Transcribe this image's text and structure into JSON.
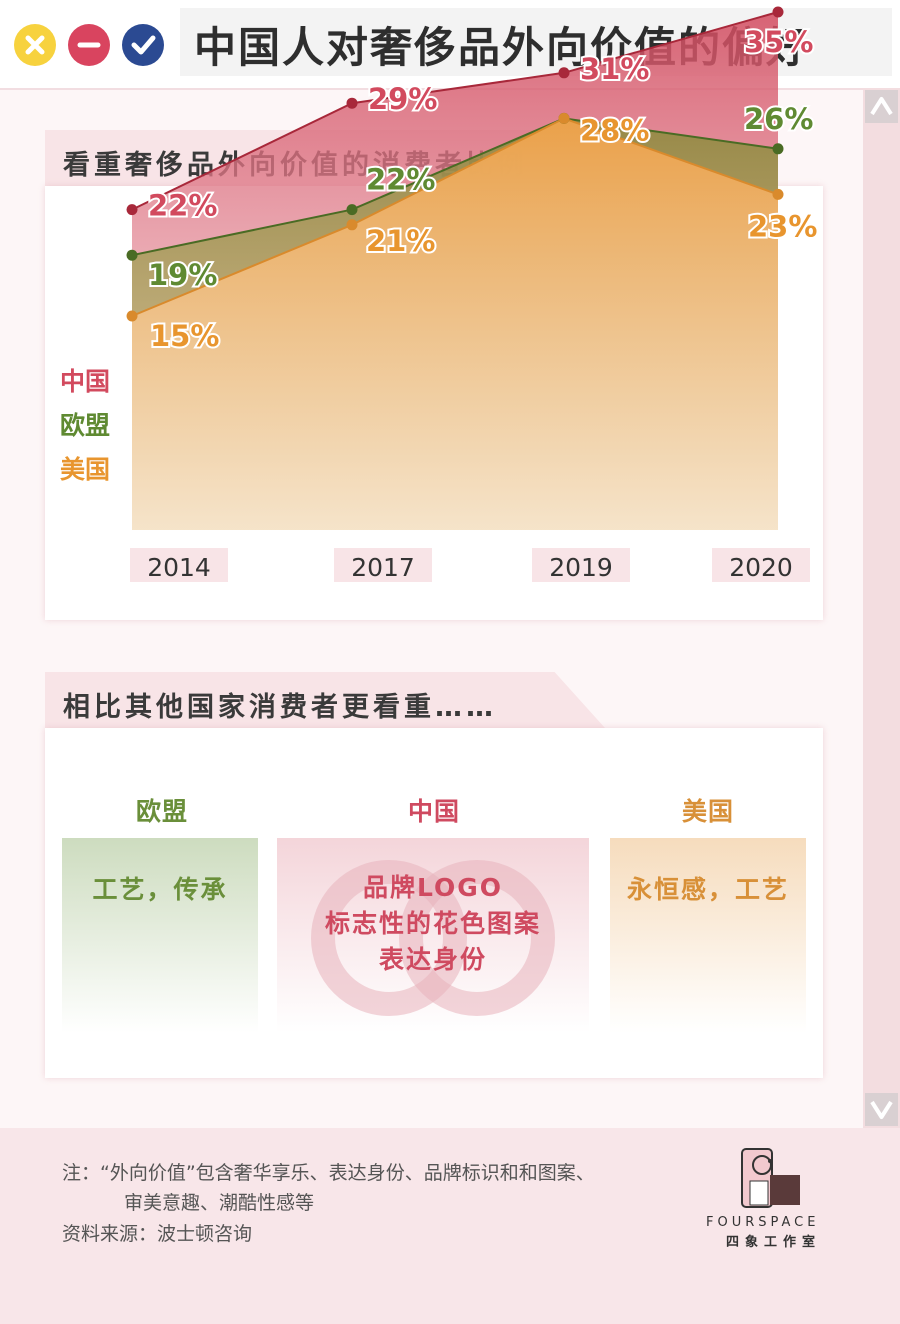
{
  "window": {
    "title": "中国人对奢侈品外向价值的偏好",
    "buttons": [
      {
        "name": "close",
        "color": "#f7d23e"
      },
      {
        "name": "minimize",
        "color": "#d9445f"
      },
      {
        "name": "maximize",
        "color": "#2b4a92"
      }
    ]
  },
  "section1": {
    "title": "看重奢侈品外向价值的消费者比例"
  },
  "chart_data": {
    "type": "area",
    "title": "看重奢侈品外向价值的消费者比例",
    "categories": [
      "2014",
      "2017",
      "2019",
      "2020"
    ],
    "ylim": [
      0,
      40
    ],
    "grid": false,
    "unit": "%",
    "series": [
      {
        "name": "中国",
        "values": [
          22,
          29,
          31,
          35
        ],
        "labels": [
          "22%",
          "29%",
          "31%",
          "35%"
        ],
        "color": "#d24a5e",
        "line": "#a8283a"
      },
      {
        "name": "欧盟",
        "values": [
          19,
          22,
          28,
          26
        ],
        "labels": [
          "19%",
          "22%",
          "",
          "26%"
        ],
        "color": "#5f8a32",
        "line": "#4a6b24"
      },
      {
        "name": "美国",
        "values": [
          15,
          21,
          28,
          23
        ],
        "labels": [
          "15%",
          "21%",
          "28%",
          "23%"
        ],
        "color": "#e8952e",
        "line": "#d98a2c"
      }
    ]
  },
  "section2": {
    "title": "相比其他国家消费者更看重……",
    "columns": [
      {
        "region": "欧盟",
        "lines": [
          "工艺，传承"
        ],
        "color": "#6a8f3a"
      },
      {
        "region": "中国",
        "lines": [
          "品牌LOGO",
          "标志性的花色图案",
          "表达身份"
        ],
        "color": "#cf4a60"
      },
      {
        "region": "美国",
        "lines": [
          "永恒感，工艺"
        ],
        "color": "#d89038"
      }
    ]
  },
  "footer": {
    "note_line1": "注：“外向价值”包含奢华享乐、表达身份、品牌标识和和图案、",
    "note_line2": "审美意趣、潮酷性感等",
    "source": "资料来源：波士顿咨询",
    "logo_en": "FOURSPACE",
    "logo_cn": "四象工作室"
  }
}
